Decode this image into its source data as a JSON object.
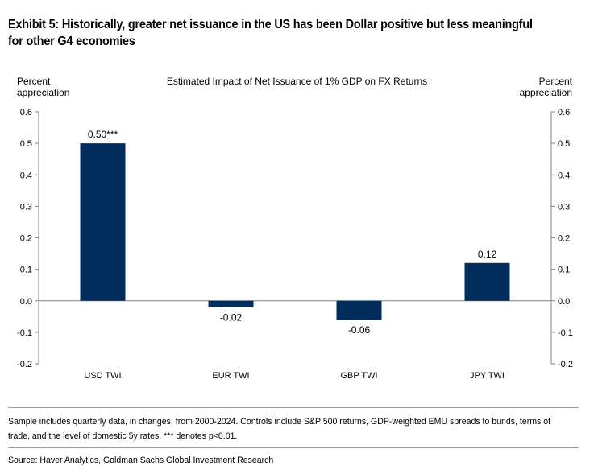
{
  "exhibit_title": "Exhibit 5: Historically, greater net issuance in the US has been Dollar positive but less meaningful for other G4 economies",
  "footnote": "Sample includes quarterly data, in changes, from 2000-2024. Controls include S&P 500 returns, GDP-weighted EMU spreads to bunds, terms of trade, and the level of domestic 5y rates. *** denotes p<0.01.",
  "source": "Source: Haver Analytics, Goldman Sachs Global Investment Research",
  "colors": {
    "bar": "#002d5b",
    "axis": "#808080"
  },
  "chart_data": {
    "type": "bar",
    "title": "Estimated Impact of Net Issuance of 1% GDP on FX Returns",
    "ylabel_left": "Percent appreciation",
    "ylabel_right": "Percent appreciation",
    "xlabel": "",
    "categories": [
      "USD TWI",
      "EUR TWI",
      "GBP TWI",
      "JPY TWI"
    ],
    "values": [
      0.5,
      -0.02,
      -0.06,
      0.12
    ],
    "data_labels": [
      "0.50***",
      "-0.02",
      "-0.06",
      "0.12"
    ],
    "ylim": [
      -0.2,
      0.6
    ],
    "yticks": [
      "-0.2",
      "-0.1",
      "0.0",
      "0.1",
      "0.2",
      "0.3",
      "0.4",
      "0.5",
      "0.6"
    ],
    "grid": false,
    "legend": "none"
  }
}
